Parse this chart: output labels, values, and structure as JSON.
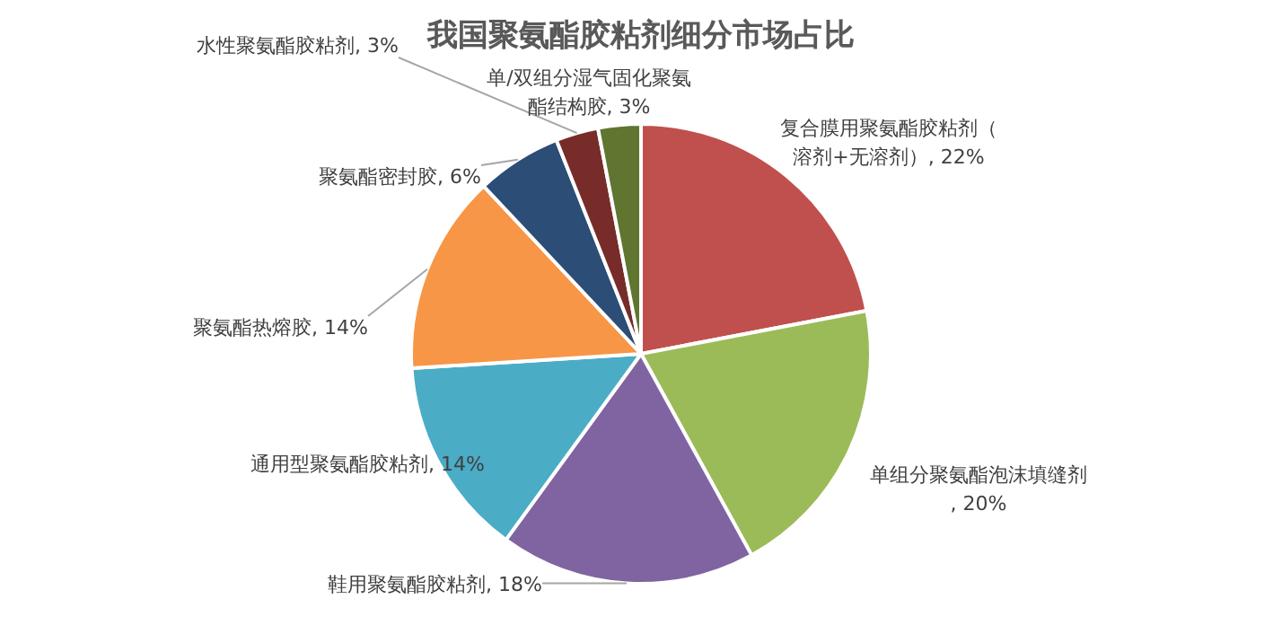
{
  "chart_data": {
    "type": "pie",
    "title": "我国聚氨酯胶粘剂细分市场占比",
    "categories": [
      "复合膜用聚氨酯胶粘剂（溶剂+无溶剂）",
      "单组分聚氨酯泡沫填缝剂",
      "鞋用聚氨酯胶粘剂",
      "通用型聚氨酯胶粘剂",
      "聚氨酯热熔胶",
      "聚氨酯密封胶",
      "水性聚氨酯胶粘剂",
      "单/双组分湿气固化聚氨酯结构胶"
    ],
    "values": [
      22,
      20,
      18,
      14,
      14,
      6,
      3,
      3
    ],
    "colors": [
      "#c0504d",
      "#9bbb59",
      "#8064a2",
      "#4bacc6",
      "#f79646",
      "#2c4d75",
      "#772c2a",
      "#5f7530"
    ],
    "value_labels": [
      ", 22%",
      ", 20%",
      ", 18%",
      ", 14%",
      ", 14%",
      ", 6%",
      ", 3%",
      ", 3%"
    ]
  }
}
